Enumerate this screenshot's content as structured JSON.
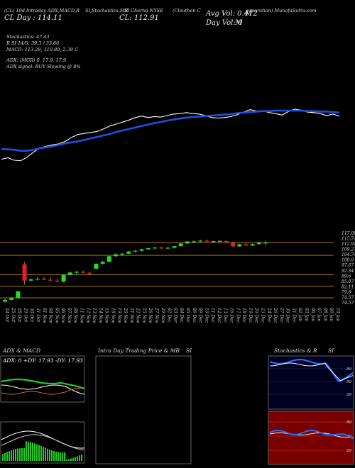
{
  "header": {
    "line1": "(CL) 10d Intraday ADX,MACD,R",
    "line1b": "SI,Stochastics,MR",
    "line1c": "SI Charts) NYSE",
    "line1d": "(Clouthen C",
    "line1e": "orporation) MunafaSutra.com",
    "line2_left": "CL Day : 114.11",
    "line2_cl": "CL: 112.91",
    "avg_vol": "Avg Vol: 0.412",
    "avg_vol_unit": "M",
    "day_vol": "Day Vol: 0",
    "day_vol_unit": "M"
  },
  "indicators": {
    "stoch": "Stochastics: 47.43",
    "rsi": "R                  SI 14/5: 39.3 / 33.66",
    "macd": "MACD: 113.28, 110.89, 2.39 C",
    "adx": "ADX:                              (MGR) 0, 17.9, 17.9",
    "adx_signal": "ADX   signal:                                       BUY Slowing @ 8%"
  },
  "colors": {
    "background": "#000000",
    "ma_blue": "#1f4fe0",
    "price_white": "#ffffff",
    "candle_green": "#22dd22",
    "candle_red": "#dd2222",
    "level_orange": "#c8861a"
  },
  "price_axis": [
    "117.09",
    "115.74",
    "112.91",
    "109.27",
    "104.74",
    "100.8",
    "97.67",
    "92.34",
    "89.6",
    "85.07",
    "82.11",
    "79.8",
    "74.57",
    "74.57"
  ],
  "dates": [
    "24 Oct",
    "25 Oct",
    "28 Oct",
    "29 Oct",
    "30 Oct",
    "31 Oct",
    "01 Nov",
    "04 Nov",
    "05 Nov",
    "06 Nov",
    "07 Nov",
    "08 Nov",
    "11 Nov",
    "12 Nov",
    "13 Nov",
    "14 Nov",
    "15 Nov",
    "18 Nov",
    "19 Nov",
    "20 Nov",
    "21 Nov",
    "22 Nov",
    "25 Nov",
    "26 Nov",
    "27 Nov",
    "29 Nov",
    "02 Dec",
    "03 Dec",
    "04 Dec",
    "05 Dec",
    "06 Dec",
    "09 Dec",
    "10 Dec",
    "11 Dec",
    "12 Dec",
    "13 Dec",
    "16 Dec",
    "17 Dec",
    "18 Dec",
    "19 Dec",
    "20 Dec",
    "23 Dec",
    "24 Dec",
    "26 Dec",
    "27 Dec",
    "30 Dec",
    "31 Dec",
    "02 Jan",
    "03 Jan",
    "06 Jan",
    "07 Jan",
    "08 Jan",
    "09 Jan",
    "10 Jan"
  ],
  "panels": {
    "adx_title": "ADX  & MACD",
    "adx_values": "ADX: 0   +DY: 17.93   -DY: 17.93",
    "intraday_title": "Intra  Day Trading Price  & MR",
    "intraday_title2": "SI",
    "stoch_title": "Stochastics & R",
    "stoch_title2": "SI",
    "stoch_ticks": [
      "80",
      "50",
      "20"
    ],
    "rsi_ticks": [
      "80",
      "50",
      "20"
    ]
  },
  "chart_data": {
    "type": "candlestick",
    "candles": [
      [
        75.2,
        77.1,
        74.4,
        76.3
      ],
      [
        76.3,
        78.2,
        75.8,
        77.4
      ],
      [
        77.4,
        82.0,
        77.0,
        81.8
      ],
      [
        99.0,
        100.5,
        86.0,
        88.6
      ],
      [
        88.6,
        90.2,
        87.8,
        89.4
      ],
      [
        89.4,
        90.8,
        88.6,
        89.8
      ],
      [
        89.8,
        91.2,
        88.9,
        89.2
      ],
      [
        89.2,
        90.6,
        88.2,
        88.6
      ],
      [
        88.6,
        89.6,
        87.4,
        88.0
      ],
      [
        88.0,
        92.5,
        87.6,
        92.3
      ],
      [
        92.3,
        94.4,
        91.8,
        93.8
      ],
      [
        93.8,
        95.0,
        92.4,
        94.2
      ],
      [
        94.2,
        95.1,
        93.2,
        93.6
      ],
      [
        93.6,
        94.3,
        92.2,
        92.9
      ],
      [
        96.2,
        99.6,
        95.8,
        99.4
      ],
      [
        99.4,
        101.4,
        98.8,
        100.6
      ],
      [
        100.6,
        104.6,
        100.1,
        104.2
      ],
      [
        104.2,
        106.0,
        103.5,
        105.4
      ],
      [
        105.4,
        106.5,
        104.2,
        105.8
      ],
      [
        105.8,
        107.6,
        105.3,
        107.2
      ],
      [
        107.2,
        108.2,
        106.5,
        107.7
      ],
      [
        107.7,
        109.0,
        107.0,
        108.6
      ],
      [
        108.6,
        109.8,
        108.0,
        109.3
      ],
      [
        109.3,
        110.0,
        108.4,
        109.7
      ],
      [
        109.7,
        110.2,
        108.6,
        109.2
      ],
      [
        109.2,
        110.0,
        108.5,
        109.6
      ],
      [
        109.6,
        111.0,
        109.0,
        110.6
      ],
      [
        110.6,
        112.5,
        110.2,
        112.3
      ],
      [
        112.3,
        113.8,
        111.9,
        113.6
      ],
      [
        113.6,
        114.4,
        113.0,
        113.7
      ],
      [
        113.7,
        114.7,
        113.1,
        114.1
      ],
      [
        114.1,
        114.9,
        113.3,
        113.5
      ],
      [
        113.5,
        114.2,
        112.8,
        113.8
      ],
      [
        113.8,
        114.6,
        113.4,
        113.9
      ],
      [
        113.9,
        114.3,
        112.6,
        112.8
      ],
      [
        112.8,
        113.3,
        109.8,
        110.5
      ],
      [
        110.5,
        112.2,
        110.1,
        111.8
      ],
      [
        111.8,
        112.6,
        110.6,
        111.0
      ],
      [
        111.0,
        112.3,
        110.6,
        111.9
      ],
      [
        111.9,
        113.3,
        111.6,
        112.9
      ],
      [
        112.9,
        114.1,
        110.8,
        112.9
      ]
    ],
    "levels": [
      112.91,
      104.74,
      92.34,
      85.07,
      77.6
    ],
    "price_line": [
      104.2,
      104.5,
      104.0,
      103.9,
      104.6,
      105.6,
      106.5,
      106.8,
      107.1,
      107.3,
      107.8,
      108.6,
      109.2,
      109.4,
      109.6,
      109.8,
      110.3,
      110.9,
      111.3,
      111.7,
      112.1,
      112.6,
      112.9,
      112.6,
      112.8,
      112.7,
      113.0,
      113.3,
      113.4,
      113.6,
      113.4,
      113.3,
      113.0,
      112.6,
      112.5,
      112.6,
      112.8,
      113.2,
      113.7,
      114.2,
      113.9,
      114.0,
      113.6,
      113.4,
      113.1,
      113.8,
      114.3,
      114.1,
      113.7,
      113.6,
      113.4,
      113.0,
      113.3,
      112.9
    ],
    "ma_line": [
      106.3,
      106.2,
      106.1,
      105.9,
      105.9,
      106.1,
      106.4,
      106.6,
      106.8,
      107.1,
      107.4,
      107.6,
      107.8,
      108.1,
      108.4,
      108.7,
      109.0,
      109.3,
      109.7,
      110.0,
      110.3,
      110.6,
      110.9,
      111.2,
      111.5,
      111.7,
      112.0,
      112.2,
      112.4,
      112.6,
      112.7,
      112.8,
      112.9,
      113.0,
      113.1,
      113.2,
      113.3,
      113.5,
      113.6,
      113.7,
      113.8,
      113.9,
      113.9,
      114.0,
      114.0,
      114.0,
      114.0,
      114.0,
      113.9,
      113.9,
      113.8,
      113.8,
      113.7,
      113.6
    ]
  }
}
